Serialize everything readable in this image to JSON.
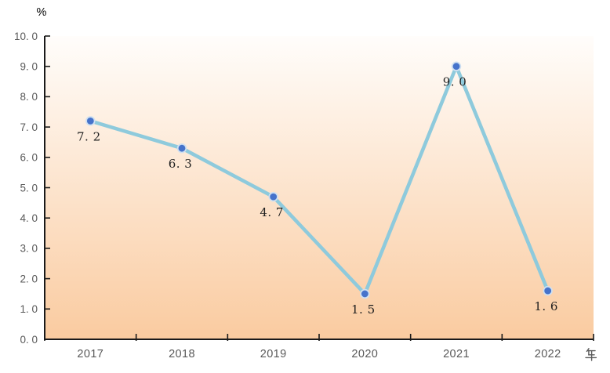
{
  "chart_data": {
    "type": "line",
    "title": "",
    "categories": [
      "2017",
      "2018",
      "2019",
      "2020",
      "2021",
      "2022"
    ],
    "values": [
      7.2,
      6.3,
      4.7,
      1.5,
      9.0,
      1.6
    ],
    "data_labels": [
      "7. 2",
      "6. 3",
      "4. 7",
      "1. 5",
      "9. 0",
      "1. 6"
    ],
    "y_axis": {
      "unit_label": "%",
      "min": 0,
      "max": 10,
      "step": 1,
      "tick_labels": [
        "0. 0",
        "1. 0",
        "2. 0",
        "3. 0",
        "4. 0",
        "5. 0",
        "6. 0",
        "7. 0",
        "8. 0",
        "9. 0",
        "10. 0"
      ]
    },
    "x_axis": {
      "unit_label": "年"
    },
    "grid": false,
    "legend_position": "none",
    "colors": {
      "line": "#8ECADC",
      "marker": "#4673CB",
      "marker_ring": "#CFE0F1",
      "data_label": "#1F1F1F",
      "axis": "#1A1A1A",
      "tick_text": "#595959",
      "bg_top": "#FFFDFB",
      "bg_bottom": "#FACBA0"
    }
  }
}
